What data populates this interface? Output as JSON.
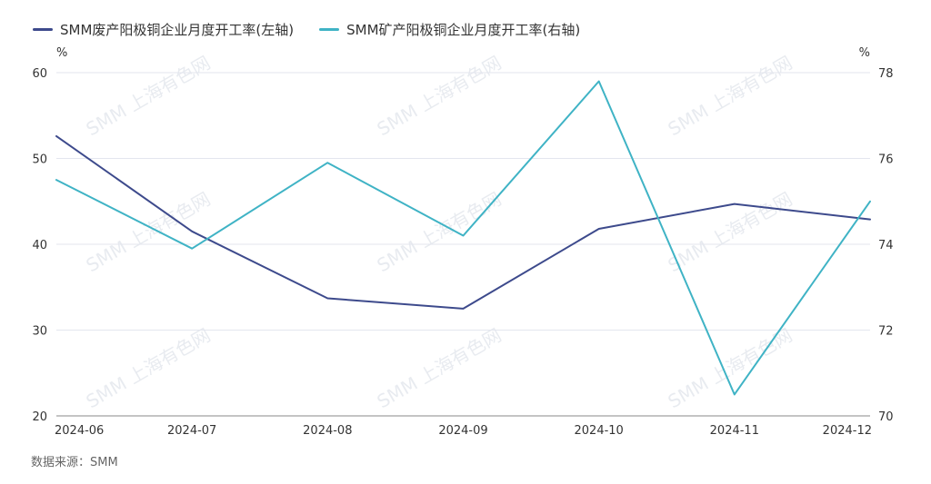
{
  "legend": [
    {
      "label": "SMM废产阳极铜企业月度开工率(左轴)",
      "color": "#3d4a8c"
    },
    {
      "label": "SMM矿产阳极铜企业月度开工率(右轴)",
      "color": "#3fb3c5"
    }
  ],
  "source": "数据来源：SMM",
  "watermark": "SMM 上海有色网",
  "chart_data": {
    "type": "line",
    "categories": [
      "2024-06",
      "2024-07",
      "2024-08",
      "2024-09",
      "2024-10",
      "2024-11",
      "2024-12"
    ],
    "series": [
      {
        "name": "SMM废产阳极铜企业月度开工率(左轴)",
        "axis": "left",
        "color": "#3d4a8c",
        "values": [
          52.6,
          41.5,
          33.7,
          32.5,
          41.8,
          44.7,
          42.9
        ]
      },
      {
        "name": "SMM矿产阳极铜企业月度开工率(右轴)",
        "axis": "right",
        "color": "#3fb3c5",
        "values": [
          75.5,
          73.9,
          75.9,
          74.2,
          77.8,
          70.5,
          75.0
        ]
      }
    ],
    "y_left": {
      "unit": "%",
      "ylim": [
        20,
        60
      ],
      "ticks": [
        20,
        30,
        40,
        50,
        60
      ]
    },
    "y_right": {
      "unit": "%",
      "ylim": [
        70,
        78
      ],
      "ticks": [
        70,
        72,
        74,
        76,
        78
      ]
    },
    "grid": true,
    "legend_position": "top-left"
  }
}
